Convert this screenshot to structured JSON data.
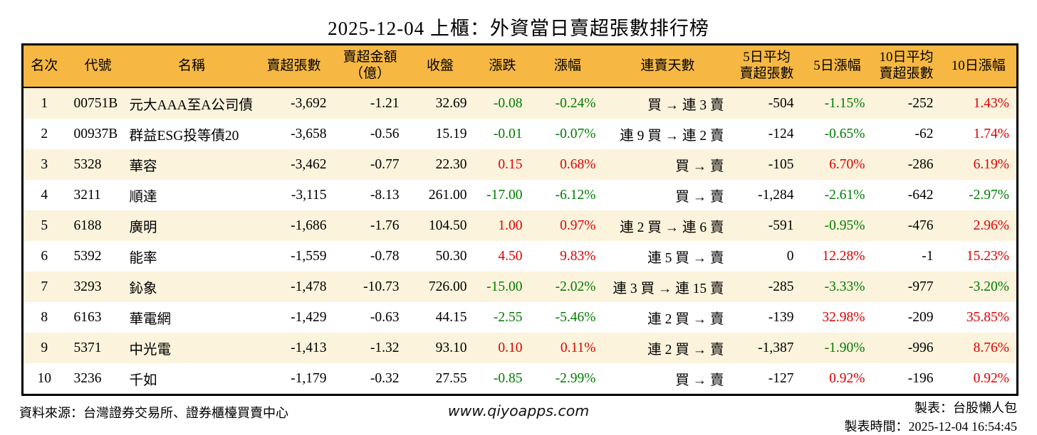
{
  "page_title": "2025-12-04 上櫃：外資當日賣超張數排行榜",
  "colors": {
    "up": "#e00000",
    "down": "#007c00",
    "header_bg": "#f6b843",
    "stripe_bg": "#fcf3dc",
    "border": "#000000"
  },
  "table": {
    "columns": [
      "名次",
      "代號",
      "名稱",
      "賣超張數",
      "賣超金額\n（億）",
      "收盤",
      "漲跌",
      "漲幅",
      "連賣天數",
      "5日平均\n賣超張數",
      "5日漲幅",
      "10日平均\n賣超張數",
      "10日漲幅"
    ],
    "rows": [
      [
        "1",
        "00751B",
        "元大AAA至A公司債",
        "-3,692",
        "-1.21",
        "32.69",
        "-0.08",
        "-0.24%",
        "買 → 連 3 賣",
        "-504",
        "-1.15%",
        "-252",
        "1.43%"
      ],
      [
        "2",
        "00937B",
        "群益ESG投等債20",
        "-3,658",
        "-0.56",
        "15.19",
        "-0.01",
        "-0.07%",
        "連 9 買 → 連 2 賣",
        "-124",
        "-0.65%",
        "-62",
        "1.74%"
      ],
      [
        "3",
        "5328",
        "華容",
        "-3,462",
        "-0.77",
        "22.30",
        "0.15",
        "0.68%",
        "買 → 賣",
        "-105",
        "6.70%",
        "-286",
        "6.19%"
      ],
      [
        "4",
        "3211",
        "順達",
        "-3,115",
        "-8.13",
        "261.00",
        "-17.00",
        "-6.12%",
        "買 → 賣",
        "-1,284",
        "-2.61%",
        "-642",
        "-2.97%"
      ],
      [
        "5",
        "6188",
        "廣明",
        "-1,686",
        "-1.76",
        "104.50",
        "1.00",
        "0.97%",
        "連 2 買 → 連 6 賣",
        "-591",
        "-0.95%",
        "-476",
        "2.96%"
      ],
      [
        "6",
        "5392",
        "能率",
        "-1,559",
        "-0.78",
        "50.30",
        "4.50",
        "9.83%",
        "連 5 買 → 賣",
        "0",
        "12.28%",
        "-1",
        "15.23%"
      ],
      [
        "7",
        "3293",
        "鈊象",
        "-1,478",
        "-10.73",
        "726.00",
        "-15.00",
        "-2.02%",
        "連 3 買 → 連 15 賣",
        "-285",
        "-3.33%",
        "-977",
        "-3.20%"
      ],
      [
        "8",
        "6163",
        "華電網",
        "-1,429",
        "-0.63",
        "44.15",
        "-2.55",
        "-5.46%",
        "連 2 買 → 賣",
        "-139",
        "32.98%",
        "-209",
        "35.85%"
      ],
      [
        "9",
        "5371",
        "中光電",
        "-1,413",
        "-1.32",
        "93.10",
        "0.10",
        "0.11%",
        "連 2 買 → 賣",
        "-1,387",
        "-1.90%",
        "-996",
        "8.76%"
      ],
      [
        "10",
        "3236",
        "千如",
        "-1,179",
        "-0.32",
        "27.55",
        "-0.85",
        "-2.99%",
        "買 → 賣",
        "-127",
        "0.92%",
        "-196",
        "0.92%"
      ]
    ]
  },
  "footer": {
    "source": "資料來源：台灣證券交易所、證券櫃檯買賣中心",
    "website": "www.qiyoapps.com",
    "maker": "製表：台股懶人包",
    "timestamp": "製表時間：2025-12-04 16:54:45"
  }
}
